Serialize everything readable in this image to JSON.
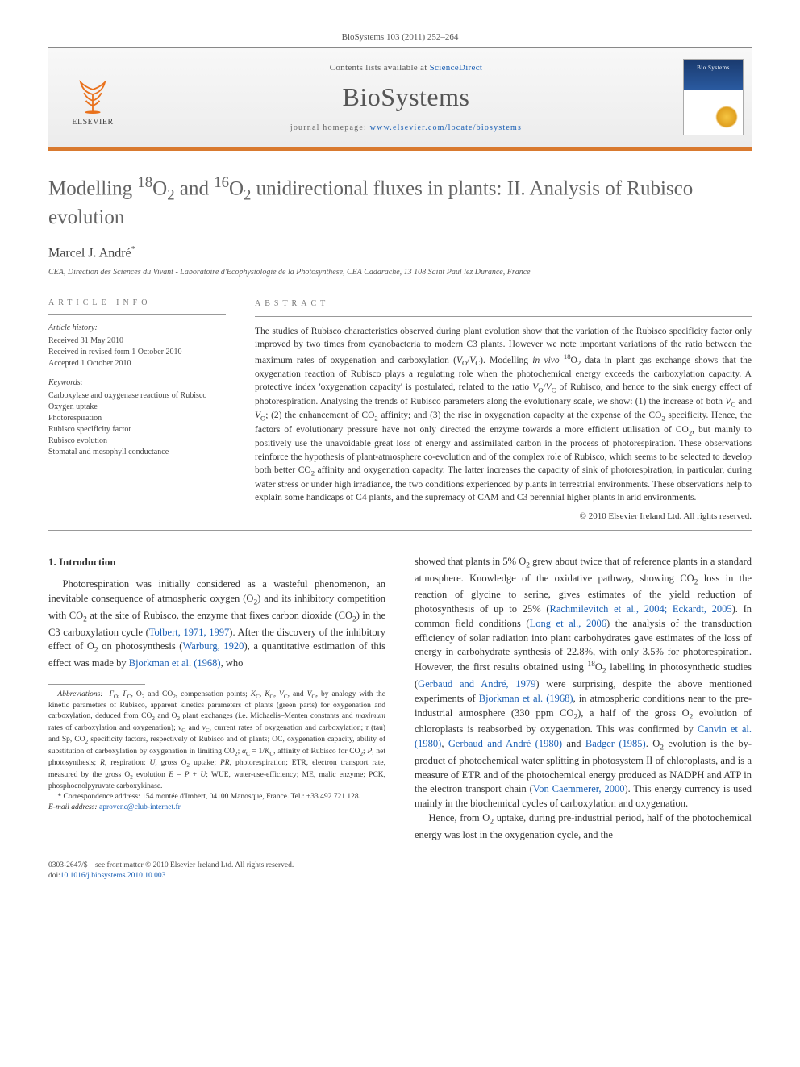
{
  "header": {
    "citation": "BioSystems 103 (2011) 252–264"
  },
  "masthead": {
    "publisher_label": "ELSEVIER",
    "contents_prefix": "Contents lists available at ",
    "contents_link": "ScienceDirect",
    "journal_name": "BioSystems",
    "homepage_prefix": "journal homepage: ",
    "homepage_url": "www.elsevier.com/locate/biosystems",
    "cover_label": "Bio Systems"
  },
  "article": {
    "title_html": "Modelling <sup>18</sup>O<sub>2</sub> and <sup>16</sup>O<sub>2</sub> unidirectional fluxes in plants: II. Analysis of Rubisco evolution",
    "author": "Marcel J. André",
    "author_sup": "*",
    "affiliation": "CEA, Direction des Sciences du Vivant - Laboratoire d'Ecophysiologie de la Photosynthèse, CEA Cadarache, 13 108 Saint Paul lez Durance, France"
  },
  "info": {
    "heading": "article info",
    "history_label": "Article history:",
    "received": "Received 31 May 2010",
    "revised": "Received in revised form 1 October 2010",
    "accepted": "Accepted 1 October 2010",
    "keywords_label": "Keywords:",
    "keywords": [
      "Carboxylase and oxygenase reactions of Rubisco",
      "Oxygen uptake",
      "Photorespiration",
      "Rubisco specificity factor",
      "Rubisco evolution",
      "Stomatal and mesophyll conductance"
    ]
  },
  "abstract": {
    "heading": "abstract",
    "text_html": "The studies of Rubisco characteristics observed during plant evolution show that the variation of the Rubisco specificity factor only improved by two times from cyanobacteria to modern C3 plants. However we note important variations of the ratio between the maximum rates of oxygenation and carboxylation (<i>V</i><sub>O</sub>/<i>V</i><sub>C</sub>). Modelling <i>in vivo</i> <sup>18</sup>O<sub>2</sub> data in plant gas exchange shows that the oxygenation reaction of Rubisco plays a regulating role when the photochemical energy exceeds the carboxylation capacity. A protective index 'oxygenation capacity' is postulated, related to the ratio <i>V</i><sub>O</sub>/<i>V</i><sub>C</sub> of Rubisco, and hence to the sink energy effect of photorespiration. Analysing the trends of Rubisco parameters along the evolutionary scale, we show: (1) the increase of both <i>V</i><sub>C</sub> and <i>V</i><sub>O</sub>; (2) the enhancement of CO<sub>2</sub> affinity; and (3) the rise in oxygenation capacity at the expense of the CO<sub>2</sub> specificity. Hence, the factors of evolutionary pressure have not only directed the enzyme towards a more efficient utilisation of CO<sub>2</sub>, but mainly to positively use the unavoidable great loss of energy and assimilated carbon in the process of photorespiration. These observations reinforce the hypothesis of plant-atmosphere co-evolution and of the complex role of Rubisco, which seems to be selected to develop both better CO<sub>2</sub> affinity and oxygenation capacity. The latter increases the capacity of sink of photorespiration, in particular, during water stress or under high irradiance, the two conditions experienced by plants in terrestrial environments. These observations help to explain some handicaps of C4 plants, and the supremacy of CAM and C3 perennial higher plants in arid environments.",
    "copyright": "© 2010 Elsevier Ireland Ltd. All rights reserved."
  },
  "body": {
    "section_heading": "1. Introduction",
    "col1_p1_html": "Photorespiration was initially considered as a wasteful phenomenon, an inevitable consequence of atmospheric oxygen (O<sub>2</sub>) and its inhibitory competition with CO<sub>2</sub> at the site of Rubisco, the enzyme that fixes carbon dioxide (CO<sub>2</sub>) in the C3 carboxylation cycle (<a class=\"ref-link\" data-name=\"citation-link\" data-interactable=\"true\">Tolbert, 1971, 1997</a>). After the discovery of the inhibitory effect of O<sub>2</sub> on photosynthesis (<a class=\"ref-link\" data-name=\"citation-link\" data-interactable=\"true\">Warburg, 1920</a>), a quantitative estimation of this effect was made by <a class=\"ref-link\" data-name=\"citation-link\" data-interactable=\"true\">Bjorkman et al. (1968)</a>, who",
    "col2_p1_html": "showed that plants in 5% O<sub>2</sub> grew about twice that of reference plants in a standard atmosphere. Knowledge of the oxidative pathway, showing CO<sub>2</sub> loss in the reaction of glycine to serine, gives estimates of the yield reduction of photosynthesis of up to 25% (<a class=\"ref-link\" data-name=\"citation-link\" data-interactable=\"true\">Rachmilevitch et al., 2004; Eckardt, 2005</a>). In common field conditions (<a class=\"ref-link\" data-name=\"citation-link\" data-interactable=\"true\">Long et al., 2006</a>) the analysis of the transduction efficiency of solar radiation into plant carbohydrates gave estimates of the loss of energy in carbohydrate synthesis of 22.8%, with only 3.5% for photorespiration. However, the first results obtained using <sup>18</sup>O<sub>2</sub> labelling in photosynthetic studies (<a class=\"ref-link\" data-name=\"citation-link\" data-interactable=\"true\">Gerbaud and André, 1979</a>) were surprising, despite the above mentioned experiments of <a class=\"ref-link\" data-name=\"citation-link\" data-interactable=\"true\">Bjorkman et al. (1968)</a>, in atmospheric conditions near to the pre-industrial atmosphere (330 ppm CO<sub>2</sub>), a half of the gross O<sub>2</sub> evolution of chloroplasts is reabsorbed by oxygenation. This was confirmed by <a class=\"ref-link\" data-name=\"citation-link\" data-interactable=\"true\">Canvin et al. (1980)</a>, <a class=\"ref-link\" data-name=\"citation-link\" data-interactable=\"true\">Gerbaud and André (1980)</a> and <a class=\"ref-link\" data-name=\"citation-link\" data-interactable=\"true\">Badger (1985)</a>. O<sub>2</sub> evolution is the by-product of photochemical water splitting in photosystem II of chloroplasts, and is a measure of ETR and of the photochemical energy produced as NADPH and ATP in the electron transport chain (<a class=\"ref-link\" data-name=\"citation-link\" data-interactable=\"true\">Von Caemmerer, 2000</a>). This energy currency is used mainly in the biochemical cycles of carboxylation and oxygenation.",
    "col2_p2_html": "Hence, from O<sub>2</sub> uptake, during pre-industrial period, half of the photochemical energy was lost in the oxygenation cycle, and the"
  },
  "footnotes": {
    "abbrev_html": "<i>Abbreviations:</i> &nbsp;<i>Γ</i><sub>O</sub>, <i>Γ</i><sub>C</sub>, O<sub>2</sub> and CO<sub>2</sub>, compensation points; <i>K</i><sub>C</sub>, <i>K</i><sub>O</sub>, <i>V</i><sub>C</sub>, and <i>V</i><sub>O</sub>, by analogy with the kinetic parameters of Rubisco, apparent kinetics parameters of plants (green parts) for oxygenation and carboxylation, deduced from CO<sub>2</sub> and O<sub>2</sub> plant exchanges (i.e. Michaelis–Menten constants and <i>maximum</i> rates of carboxylation and oxygenation); <i>v</i><sub>O</sub> and <i>v</i><sub>C</sub>, current rates of oxygenation and carboxylation; <i>τ</i> (tau) and Sp, CO<sub>2</sub> specificity factors, respectively of Rubisco and of plants; OC, oxygenation capacity, ability of substitution of carboxylation by oxygenation in limiting CO<sub>2</sub>; <i>α</i><sub>C</sub> = 1/<i>K</i><sub>C</sub>, affinity of Rubisco for CO<sub>2</sub>; <i>P</i>, net photosynthesis; <i>R</i>, respiration; <i>U</i>, gross O<sub>2</sub> uptake; <i>PR</i>, photorespiration; ETR, electron transport rate, measured by the gross O<sub>2</sub> evolution <i>E</i> = <i>P</i> + <i>U</i>; WUE, water-use-efficiency; ME, malic enzyme; PCK, phosphoenolpyruvate carboxykinase.",
    "corr_html": "* Correspondence address: 154 montée d'Imbert, 04100 Manosque, France. Tel.: +33 492 721 128.",
    "email_label": "E-mail address:",
    "email": "aprovenc@club-internet.fr"
  },
  "footer": {
    "line1": "0303-2647/$ – see front matter © 2010 Elsevier Ireland Ltd. All rights reserved.",
    "doi_label": "doi:",
    "doi": "10.1016/j.biosystems.2010.10.003"
  },
  "colors": {
    "accent_orange": "#d97a2f",
    "link_blue": "#1a5fb4",
    "text_gray": "#636363"
  }
}
